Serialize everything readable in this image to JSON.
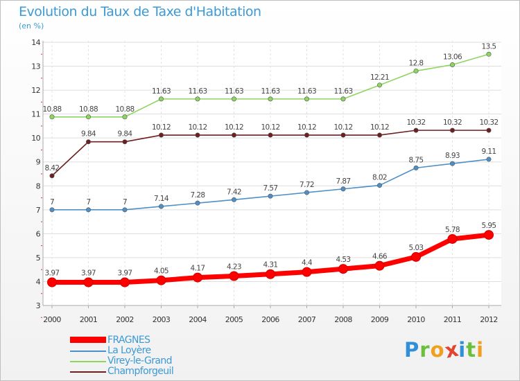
{
  "title": "Evolution du Taux de Taxe d'Habitation",
  "subtitle": "(en %)",
  "logo": {
    "letters": [
      {
        "ch": "P",
        "color": "#2f8fd8"
      },
      {
        "ch": "r",
        "color": "#6cbf3c"
      },
      {
        "ch": "o",
        "color": "#f0a020"
      },
      {
        "ch": "x",
        "color": "#e2452f"
      },
      {
        "ch": "i",
        "color": "#2f8fd8"
      },
      {
        "ch": "t",
        "color": "#6cbf3c"
      },
      {
        "ch": "i",
        "color": "#f0a020"
      }
    ]
  },
  "chart_data": {
    "type": "line",
    "title": "Evolution du Taux de Taxe d'Habitation",
    "ylabel": "(en %)",
    "xlabel": "",
    "x": [
      "2000",
      "2001",
      "2002",
      "2003",
      "2004",
      "2005",
      "2006",
      "2007",
      "2008",
      "2009",
      "2010",
      "2011",
      "2012"
    ],
    "ylim": [
      3,
      14
    ],
    "yticks": [
      "3",
      "4",
      "5",
      "6",
      "7",
      "8",
      "9",
      "10",
      "11",
      "12",
      "13",
      "14"
    ],
    "grid": true,
    "legend_position": "bottom-left",
    "series": [
      {
        "name": "FRAGNES",
        "color": "#ff0000",
        "values": [
          3.97,
          3.97,
          3.97,
          4.05,
          4.17,
          4.23,
          4.31,
          4.4,
          4.53,
          4.66,
          5.03,
          5.78,
          5.95
        ],
        "labels": [
          "3.97",
          "3.97",
          "3.97",
          "4.05",
          "4.17",
          "4.23",
          "4.31",
          "4.4",
          "4.53",
          "4.66",
          "5.03",
          "5.78",
          "5.95"
        ]
      },
      {
        "name": "La Loyère",
        "color": "#4d8fc6",
        "values": [
          7,
          7,
          7,
          7.14,
          7.28,
          7.42,
          7.57,
          7.72,
          7.87,
          8.02,
          8.75,
          8.93,
          9.11
        ],
        "labels": [
          "7",
          "7",
          "7",
          "7.14",
          "7.28",
          "7.42",
          "7.57",
          "7.72",
          "7.87",
          "8.02",
          "8.75",
          "8.93",
          "9.11"
        ]
      },
      {
        "name": "Virey-le-Grand",
        "color": "#8ed560",
        "values": [
          10.88,
          10.88,
          10.88,
          11.63,
          11.63,
          11.63,
          11.63,
          11.63,
          11.63,
          12.21,
          12.8,
          13.06,
          13.5
        ],
        "labels": [
          "10.88",
          "10.88",
          "10.88",
          "11.63",
          "11.63",
          "11.63",
          "11.63",
          "11.63",
          "11.63",
          "12.21",
          "12.8",
          "13.06",
          "13.5"
        ]
      },
      {
        "name": "Champforgeuil",
        "color": "#6b1f1f",
        "values": [
          8.42,
          9.84,
          9.84,
          10.12,
          10.12,
          10.12,
          10.12,
          10.12,
          10.12,
          10.12,
          10.32,
          10.32,
          10.32
        ],
        "labels": [
          "8.42",
          "9.84",
          "9.84",
          "10.12",
          "10.12",
          "10.12",
          "10.12",
          "10.12",
          "10.12",
          "10.12",
          "10.32",
          "10.32",
          "10.32"
        ]
      }
    ]
  }
}
